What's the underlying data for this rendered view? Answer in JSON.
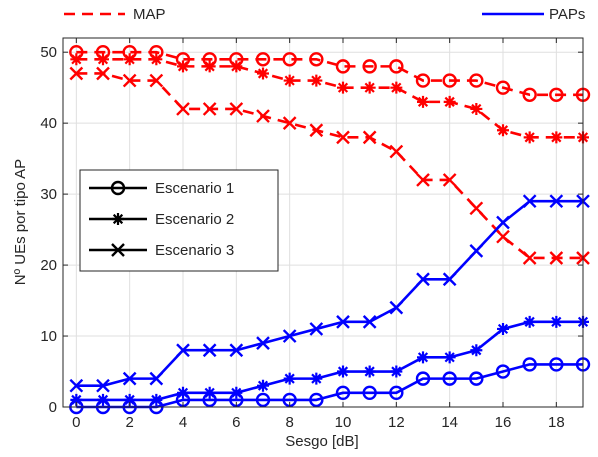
{
  "chart_data": {
    "type": "line",
    "xlabel": "Sesgo [dB]",
    "ylabel": "Nº UEs por tipo AP",
    "xlim": [
      -0.5,
      19
    ],
    "ylim": [
      0,
      52
    ],
    "x_ticks": [
      0,
      2,
      4,
      6,
      8,
      10,
      12,
      14,
      16,
      18
    ],
    "y_ticks": [
      0,
      10,
      20,
      30,
      40,
      50
    ],
    "grid": true,
    "x": [
      0,
      1,
      2,
      3,
      4,
      5,
      6,
      7,
      8,
      9,
      10,
      11,
      12,
      13,
      14,
      15,
      16,
      17,
      18,
      19
    ],
    "top_legend": [
      {
        "label": "MAP",
        "color": "#ff0000",
        "dash": "dashed",
        "position": "top-left"
      },
      {
        "label": "PAPs",
        "color": "#0000ff",
        "dash": "solid",
        "position": "top-right"
      }
    ],
    "marker_legend": {
      "position": "left",
      "entries": [
        {
          "label": "Escenario 1",
          "marker": "circle"
        },
        {
          "label": "Escenario 2",
          "marker": "asterisk"
        },
        {
          "label": "Escenario 3",
          "marker": "cross"
        }
      ]
    },
    "series": [
      {
        "group": "MAP",
        "scenario": 1,
        "marker": "circle",
        "color": "#ff0000",
        "dash": "dashed",
        "values": [
          50,
          50,
          50,
          50,
          49,
          49,
          49,
          49,
          49,
          49,
          48,
          48,
          48,
          46,
          46,
          46,
          45,
          44,
          44,
          44
        ]
      },
      {
        "group": "MAP",
        "scenario": 2,
        "marker": "asterisk",
        "color": "#ff0000",
        "dash": "dashed",
        "values": [
          49,
          49,
          49,
          49,
          48,
          48,
          48,
          47,
          46,
          46,
          45,
          45,
          45,
          43,
          43,
          42,
          39,
          38,
          38,
          38
        ]
      },
      {
        "group": "MAP",
        "scenario": 3,
        "marker": "cross",
        "color": "#ff0000",
        "dash": "dashed",
        "values": [
          47,
          47,
          46,
          46,
          42,
          42,
          42,
          41,
          40,
          39,
          38,
          38,
          36,
          32,
          32,
          28,
          24,
          21,
          21,
          21
        ]
      },
      {
        "group": "PAPs",
        "scenario": 1,
        "marker": "circle",
        "color": "#0000ff",
        "dash": "solid",
        "values": [
          0,
          0,
          0,
          0,
          1,
          1,
          1,
          1,
          1,
          1,
          2,
          2,
          2,
          4,
          4,
          4,
          5,
          6,
          6,
          6
        ]
      },
      {
        "group": "PAPs",
        "scenario": 2,
        "marker": "asterisk",
        "color": "#0000ff",
        "dash": "solid",
        "values": [
          1,
          1,
          1,
          1,
          2,
          2,
          2,
          3,
          4,
          4,
          5,
          5,
          5,
          7,
          7,
          8,
          11,
          12,
          12,
          12
        ]
      },
      {
        "group": "PAPs",
        "scenario": 3,
        "marker": "cross",
        "color": "#0000ff",
        "dash": "solid",
        "values": [
          3,
          3,
          4,
          4,
          8,
          8,
          8,
          9,
          10,
          11,
          12,
          12,
          14,
          18,
          18,
          22,
          26,
          29,
          29,
          29
        ]
      }
    ]
  }
}
